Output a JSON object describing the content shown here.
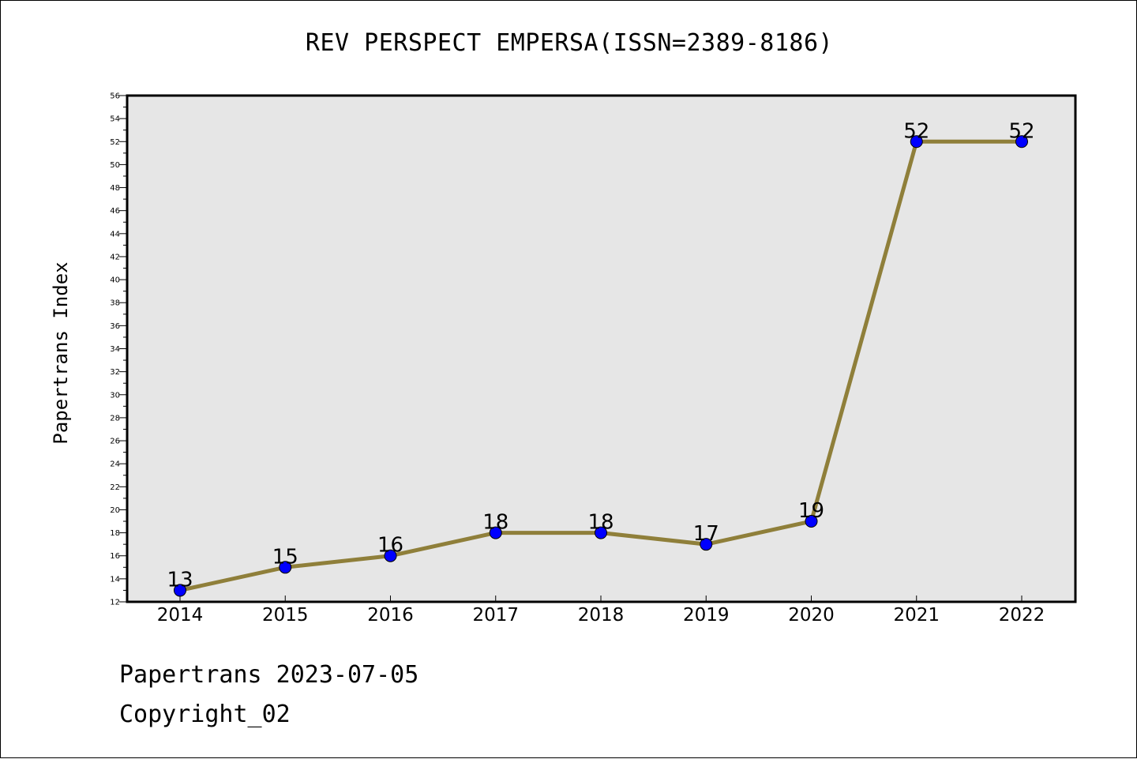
{
  "chart_data": {
    "type": "line",
    "title": "REV PERSPECT EMPERSA(ISSN=2389-8186)",
    "xlabel": "",
    "ylabel": "Papertrans Index",
    "categories": [
      "2014",
      "2015",
      "2016",
      "2017",
      "2018",
      "2019",
      "2020",
      "2021",
      "2022"
    ],
    "series": [
      {
        "values": [
          13,
          15,
          16,
          18,
          18,
          17,
          19,
          52,
          52
        ]
      }
    ],
    "ylim": [
      12,
      56
    ],
    "y_ticks": [
      12,
      14,
      16,
      18,
      20,
      22,
      24,
      26,
      28,
      30,
      32,
      34,
      36,
      38,
      40,
      42,
      44,
      46,
      48,
      50,
      52,
      54,
      56
    ],
    "data_labels": [
      "13",
      "15",
      "16",
      "18",
      "18",
      "17",
      "19",
      "52",
      "52"
    ],
    "grid": false,
    "colors": {
      "line": "#8f7f3a",
      "marker": "#0000ff",
      "plot_background": "#e6e6e6"
    }
  },
  "footer": {
    "line1": "Papertrans 2023-07-05",
    "line2": "Copyright_02"
  }
}
